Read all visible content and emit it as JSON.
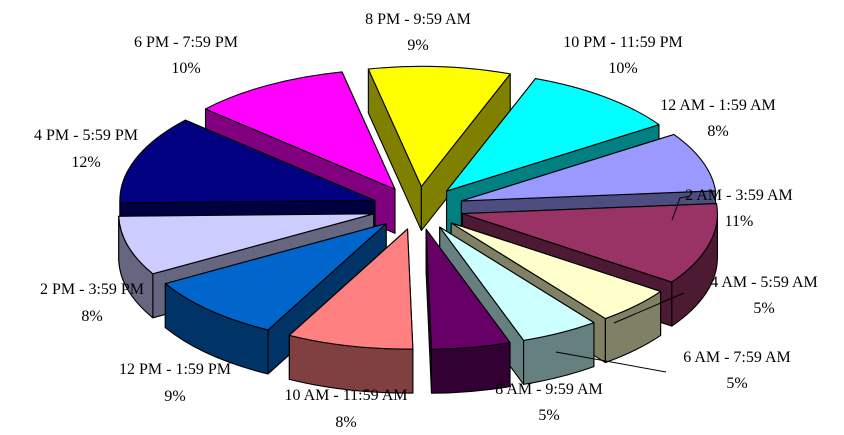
{
  "chart_data": {
    "type": "pie",
    "variant": "3d-exploded",
    "legend": "none",
    "slices": [
      {
        "label": "8 PM - 9:59 AM",
        "pct_label": "9%",
        "value": 9,
        "color": "#FFFF00",
        "side": "#808000"
      },
      {
        "label": "10 PM - 11:59 PM",
        "pct_label": "10%",
        "value": 10,
        "color": "#00FFFF",
        "side": "#008080"
      },
      {
        "label": "12 AM - 1:59 AM",
        "pct_label": "8%",
        "value": 8,
        "color": "#9999FF",
        "side": "#4D4D80"
      },
      {
        "label": "2 AM - 3:59 AM",
        "pct_label": "11%",
        "value": 11,
        "color": "#993366",
        "side": "#4D1A33"
      },
      {
        "label": "4 AM - 5:59 AM",
        "pct_label": "5%",
        "value": 5,
        "color": "#FFFFCC",
        "side": "#808066"
      },
      {
        "label": "6 AM - 7:59 AM",
        "pct_label": "5%",
        "value": 5,
        "color": "#CCFFFF",
        "side": "#668080"
      },
      {
        "label": "8 AM - 9:59 AM",
        "pct_label": "5%",
        "value": 5,
        "color": "#660066",
        "side": "#330033"
      },
      {
        "label": "10 AM - 11:59 AM",
        "pct_label": "8%",
        "value": 8,
        "color": "#FF8080",
        "side": "#804040"
      },
      {
        "label": "12 PM - 1:59 PM",
        "pct_label": "9%",
        "value": 9,
        "color": "#0066CC",
        "side": "#003366"
      },
      {
        "label": "2 PM - 3:59 PM",
        "pct_label": "8%",
        "value": 8,
        "color": "#CCCCFF",
        "side": "#666680"
      },
      {
        "label": "4 PM - 5:59 PM",
        "pct_label": "12%",
        "value": 12,
        "color": "#000080",
        "side": "#000040"
      },
      {
        "label": "6 PM - 7:59 PM",
        "pct_label": "10%",
        "value": 10,
        "color": "#FF00FF",
        "side": "#800080"
      }
    ]
  }
}
